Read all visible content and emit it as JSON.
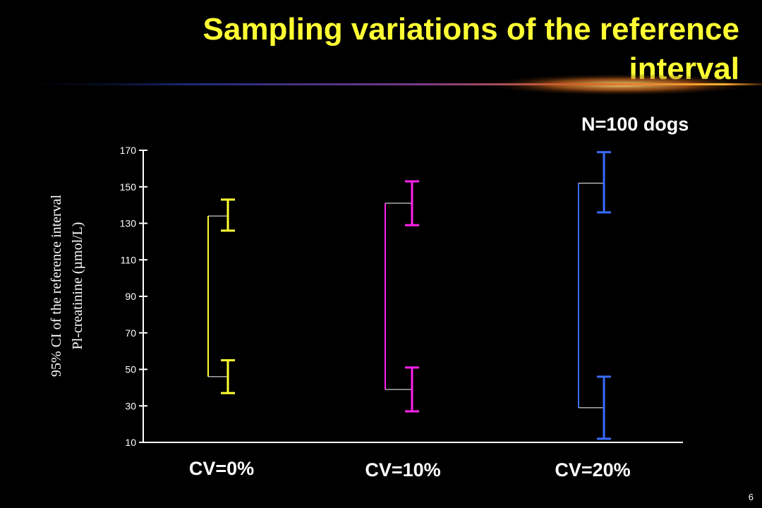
{
  "slide": {
    "title": "Sampling variations of the reference interval",
    "subtitle": "N=100 dogs",
    "page_number": "6"
  },
  "colors": {
    "background": "#000000",
    "title": "#ffff33",
    "cv0": "#ffff33",
    "cv10": "#ff22ee",
    "cv20": "#3a6cff"
  },
  "chart_data": {
    "type": "interval",
    "title": "",
    "ylabel": [
      "95% CI of the reference interval",
      "Pl-creatinine (µmol/L)"
    ],
    "xlabel": "",
    "ylim": [
      10,
      170
    ],
    "yticks": [
      10,
      30,
      50,
      70,
      90,
      110,
      130,
      150,
      170
    ],
    "grid": false,
    "categories": [
      "CV=0%",
      "CV=10%",
      "CV=20%"
    ],
    "series": [
      {
        "category": "CV=0%",
        "color": "#ffff33",
        "lower_limit": 46,
        "upper_limit": 134,
        "lower_ci": [
          37,
          55
        ],
        "upper_ci": [
          126,
          143
        ]
      },
      {
        "category": "CV=10%",
        "color": "#ff22ee",
        "lower_limit": 39,
        "upper_limit": 141,
        "lower_ci": [
          27,
          51
        ],
        "upper_ci": [
          129,
          153
        ]
      },
      {
        "category": "CV=20%",
        "color": "#3a6cff",
        "lower_limit": 29,
        "upper_limit": 152,
        "lower_ci": [
          12,
          46
        ],
        "upper_ci": [
          136,
          169
        ]
      }
    ]
  }
}
